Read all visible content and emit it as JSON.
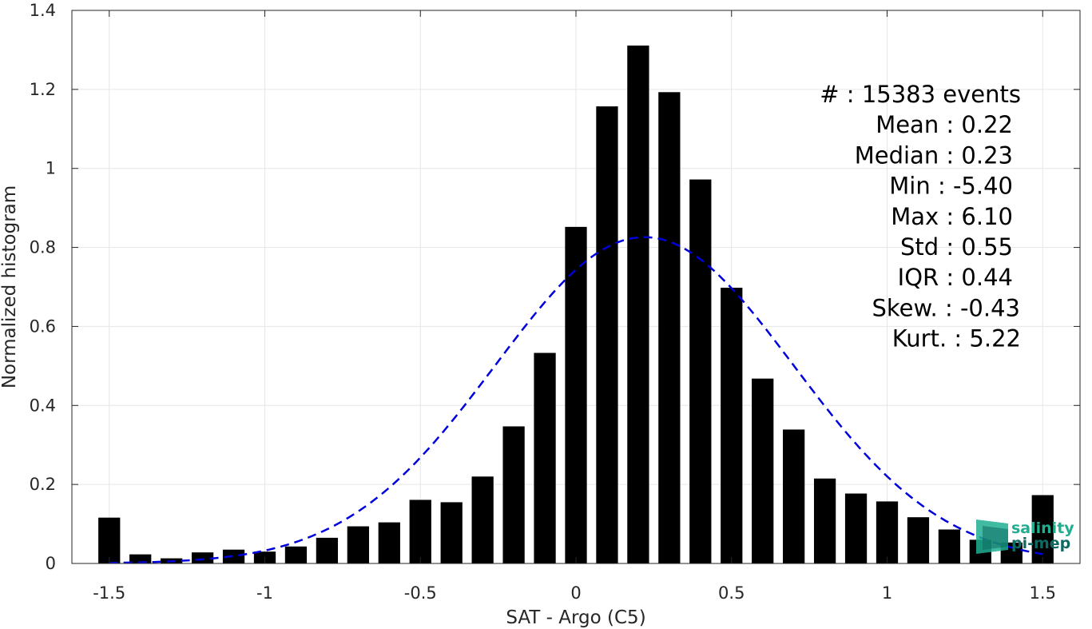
{
  "chart_data": {
    "type": "bar",
    "xlabel": "SAT - Argo (C5)",
    "ylabel": "Normalized histogram",
    "xlim": [
      -1.62,
      1.62
    ],
    "ylim": [
      0,
      1.4
    ],
    "grid": true,
    "x_ticks": [
      "-1.5",
      "-1",
      "-0.5",
      "0",
      "0.5",
      "1",
      "1.5"
    ],
    "y_ticks": [
      "0",
      "0.2",
      "0.4",
      "0.6",
      "0.8",
      "1",
      "1.2",
      "1.4"
    ],
    "bar_width": 0.07,
    "bar_color": "#000000",
    "bins": [
      {
        "x": -1.5,
        "y": 0.116
      },
      {
        "x": -1.4,
        "y": 0.023
      },
      {
        "x": -1.3,
        "y": 0.013
      },
      {
        "x": -1.2,
        "y": 0.028
      },
      {
        "x": -1.1,
        "y": 0.035
      },
      {
        "x": -1.0,
        "y": 0.03
      },
      {
        "x": -0.9,
        "y": 0.043
      },
      {
        "x": -0.8,
        "y": 0.065
      },
      {
        "x": -0.7,
        "y": 0.094
      },
      {
        "x": -0.6,
        "y": 0.104
      },
      {
        "x": -0.5,
        "y": 0.161
      },
      {
        "x": -0.4,
        "y": 0.155
      },
      {
        "x": -0.3,
        "y": 0.22
      },
      {
        "x": -0.2,
        "y": 0.347
      },
      {
        "x": -0.1,
        "y": 0.533
      },
      {
        "x": 0.0,
        "y": 0.852
      },
      {
        "x": 0.1,
        "y": 1.157
      },
      {
        "x": 0.2,
        "y": 1.311
      },
      {
        "x": 0.3,
        "y": 1.193
      },
      {
        "x": 0.4,
        "y": 0.972
      },
      {
        "x": 0.5,
        "y": 0.698
      },
      {
        "x": 0.6,
        "y": 0.468
      },
      {
        "x": 0.7,
        "y": 0.339
      },
      {
        "x": 0.8,
        "y": 0.215
      },
      {
        "x": 0.9,
        "y": 0.177
      },
      {
        "x": 1.0,
        "y": 0.157
      },
      {
        "x": 1.1,
        "y": 0.117
      },
      {
        "x": 1.2,
        "y": 0.086
      },
      {
        "x": 1.3,
        "y": 0.06
      },
      {
        "x": 1.4,
        "y": 0.053
      },
      {
        "x": 1.5,
        "y": 0.173
      }
    ],
    "fit_curve": {
      "style": "dashed",
      "color": "#0000dd",
      "mean": 0.22,
      "std": 0.48,
      "peak": 0.826,
      "x_range": [
        -1.5,
        1.5
      ]
    },
    "stats": [
      {
        "key": "#",
        "sep": " : ",
        "value": "15383 events"
      },
      {
        "key": "Mean",
        "sep": " : ",
        "value": "0.22"
      },
      {
        "key": "Median",
        "sep": " : ",
        "value": "0.23"
      },
      {
        "key": "Min",
        "sep": " : ",
        "value": "-5.40"
      },
      {
        "key": "Max",
        "sep": " : ",
        "value": "6.10"
      },
      {
        "key": "Std",
        "sep": " : ",
        "value": "0.55"
      },
      {
        "key": "IQR",
        "sep": " : ",
        "value": "0.44"
      },
      {
        "key": "Skew.",
        "sep": " : ",
        "value": "-0.43"
      },
      {
        "key": "Kurt.",
        "sep": " : ",
        "value": "5.22"
      }
    ]
  },
  "logo": {
    "line1": "salinity",
    "line2": "pi-mep",
    "color": "#1fae8f"
  }
}
